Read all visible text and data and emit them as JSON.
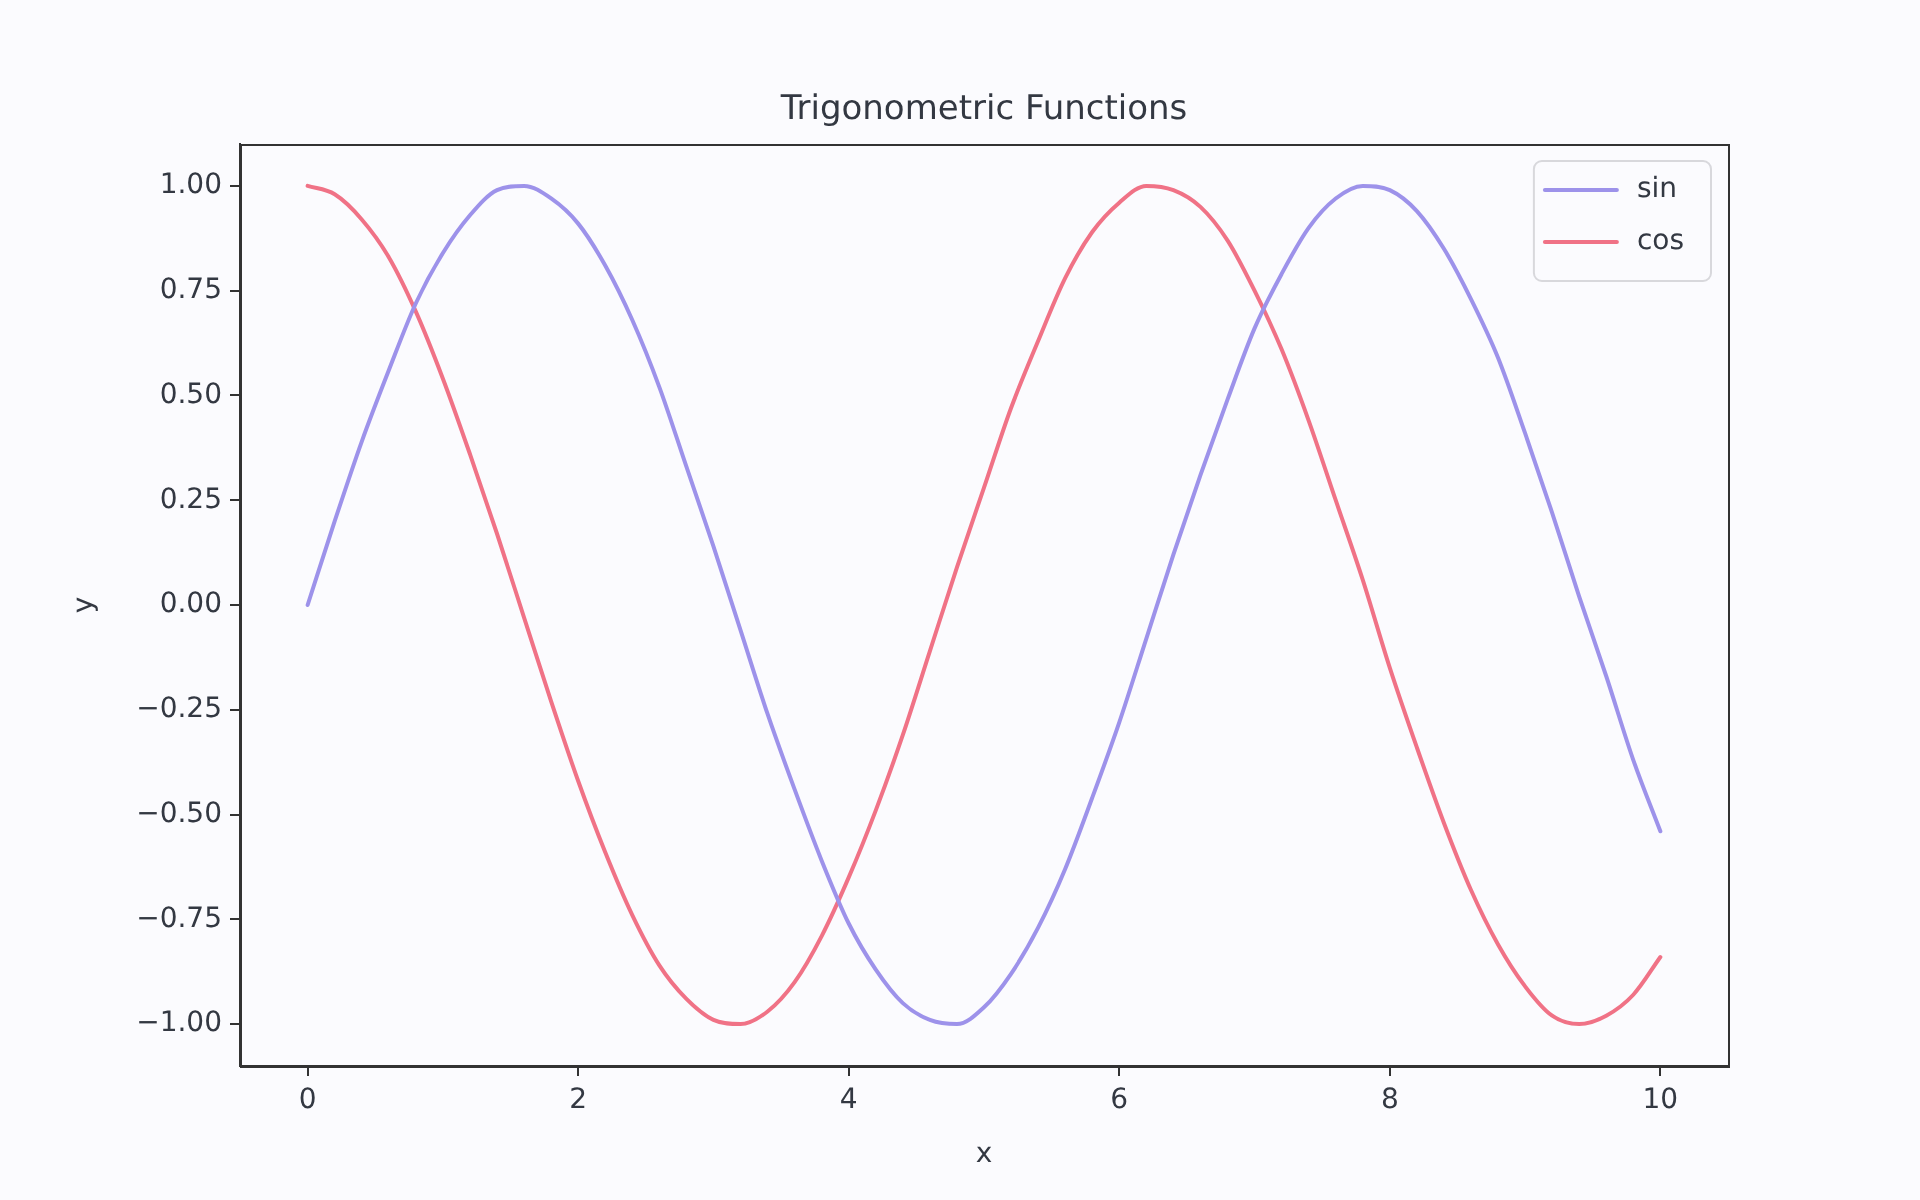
{
  "chart_data": {
    "type": "line",
    "title": "Trigonometric Functions",
    "xlabel": "x",
    "ylabel": "y",
    "x": [
      0,
      0.2,
      0.4,
      0.6,
      0.8,
      1,
      1.2,
      1.4,
      1.6,
      1.8,
      2,
      2.2,
      2.4,
      2.6,
      2.8,
      3,
      3.2,
      3.4,
      3.6,
      3.8,
      4,
      4.2,
      4.4,
      4.6,
      4.8,
      5,
      5.2,
      5.4,
      5.6,
      5.8,
      6,
      6.2,
      6.4,
      6.6,
      6.8,
      7,
      7.2,
      7.4,
      7.6,
      7.8,
      8,
      8.2,
      8.4,
      8.6,
      8.8,
      9,
      9.2,
      9.4,
      9.6,
      9.8,
      10
    ],
    "series": [
      {
        "name": "sin",
        "color": "#9d92ea",
        "values": [
          0,
          0.2,
          0.39,
          0.56,
          0.72,
          0.84,
          0.93,
          0.99,
          1,
          0.97,
          0.91,
          0.81,
          0.68,
          0.52,
          0.33,
          0.14,
          -0.06,
          -0.26,
          -0.44,
          -0.61,
          -0.76,
          -0.87,
          -0.95,
          -0.99,
          -1,
          -0.96,
          -0.88,
          -0.77,
          -0.63,
          -0.46,
          -0.28,
          -0.08,
          0.12,
          0.31,
          0.49,
          0.66,
          0.79,
          0.9,
          0.97,
          1,
          0.99,
          0.94,
          0.85,
          0.73,
          0.59,
          0.41,
          0.22,
          0.02,
          -0.17,
          -0.37,
          -0.54
        ]
      },
      {
        "name": "cos",
        "color": "#f07286",
        "values": [
          1,
          0.98,
          0.92,
          0.83,
          0.7,
          0.54,
          0.36,
          0.17,
          -0.03,
          -0.23,
          -0.42,
          -0.59,
          -0.74,
          -0.86,
          -0.94,
          -0.99,
          -1,
          -0.97,
          -0.9,
          -0.79,
          -0.65,
          -0.49,
          -0.31,
          -0.11,
          0.09,
          0.28,
          0.47,
          0.63,
          0.78,
          0.89,
          0.96,
          1,
          0.99,
          0.95,
          0.87,
          0.75,
          0.61,
          0.44,
          0.25,
          0.06,
          -0.15,
          -0.34,
          -0.52,
          -0.68,
          -0.81,
          -0.91,
          -0.98,
          -1,
          -0.98,
          -0.93,
          -0.84
        ]
      }
    ],
    "xlim": [
      -0.5,
      10.5
    ],
    "ylim": [
      -1.1,
      1.1
    ],
    "xticks": [
      0,
      2,
      4,
      6,
      8,
      10
    ],
    "yticks": [
      {
        "value": -1,
        "label": "−1.00"
      },
      {
        "value": -0.75,
        "label": "−0.75"
      },
      {
        "value": -0.5,
        "label": "−0.50"
      },
      {
        "value": -0.25,
        "label": "−0.25"
      },
      {
        "value": 0,
        "label": "0.00"
      },
      {
        "value": 0.25,
        "label": "0.25"
      },
      {
        "value": 0.5,
        "label": "0.50"
      },
      {
        "value": 0.75,
        "label": "0.75"
      },
      {
        "value": 1,
        "label": "1.00"
      }
    ],
    "legend": "top right",
    "line_style": "solid"
  }
}
